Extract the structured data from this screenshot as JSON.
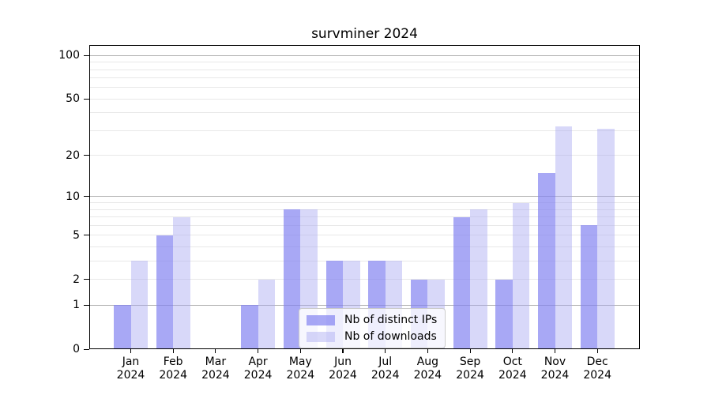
{
  "chart_data": {
    "type": "bar",
    "title": "survminer 2024",
    "categories": [
      "Jan 2024",
      "Feb 2024",
      "Mar 2024",
      "Apr 2024",
      "May 2024",
      "Jun 2024",
      "Jul 2024",
      "Aug 2024",
      "Sep 2024",
      "Oct 2024",
      "Nov 2024",
      "Dec 2024"
    ],
    "series": [
      {
        "name": "Nb of distinct IPs",
        "color": "#8383f1",
        "alpha": 0.7,
        "values": [
          1,
          5,
          0,
          1,
          8,
          3,
          3,
          2,
          7,
          2,
          15,
          6
        ]
      },
      {
        "name": "Nb of downloads",
        "color": "#a9a9f2",
        "alpha": 0.45,
        "values": [
          3,
          7,
          0,
          2,
          8,
          3,
          3,
          2,
          8,
          9,
          32,
          31
        ]
      }
    ],
    "xlabel": "",
    "ylabel": "",
    "yscale": "log1p",
    "ylim": [
      0,
      118
    ],
    "yticks": [
      0,
      1,
      2,
      5,
      10,
      20,
      50,
      100
    ],
    "grid": {
      "major_values": [
        1,
        10,
        100
      ],
      "minor_values": [
        2,
        3,
        4,
        5,
        6,
        7,
        8,
        9,
        20,
        30,
        40,
        50,
        60,
        70,
        80,
        90
      ],
      "major_color": "#b0b0b0",
      "minor_color": "#e8e8e8"
    },
    "legend_position": "lower center",
    "frame_color": "#000000",
    "background_color": "#ffffff"
  }
}
